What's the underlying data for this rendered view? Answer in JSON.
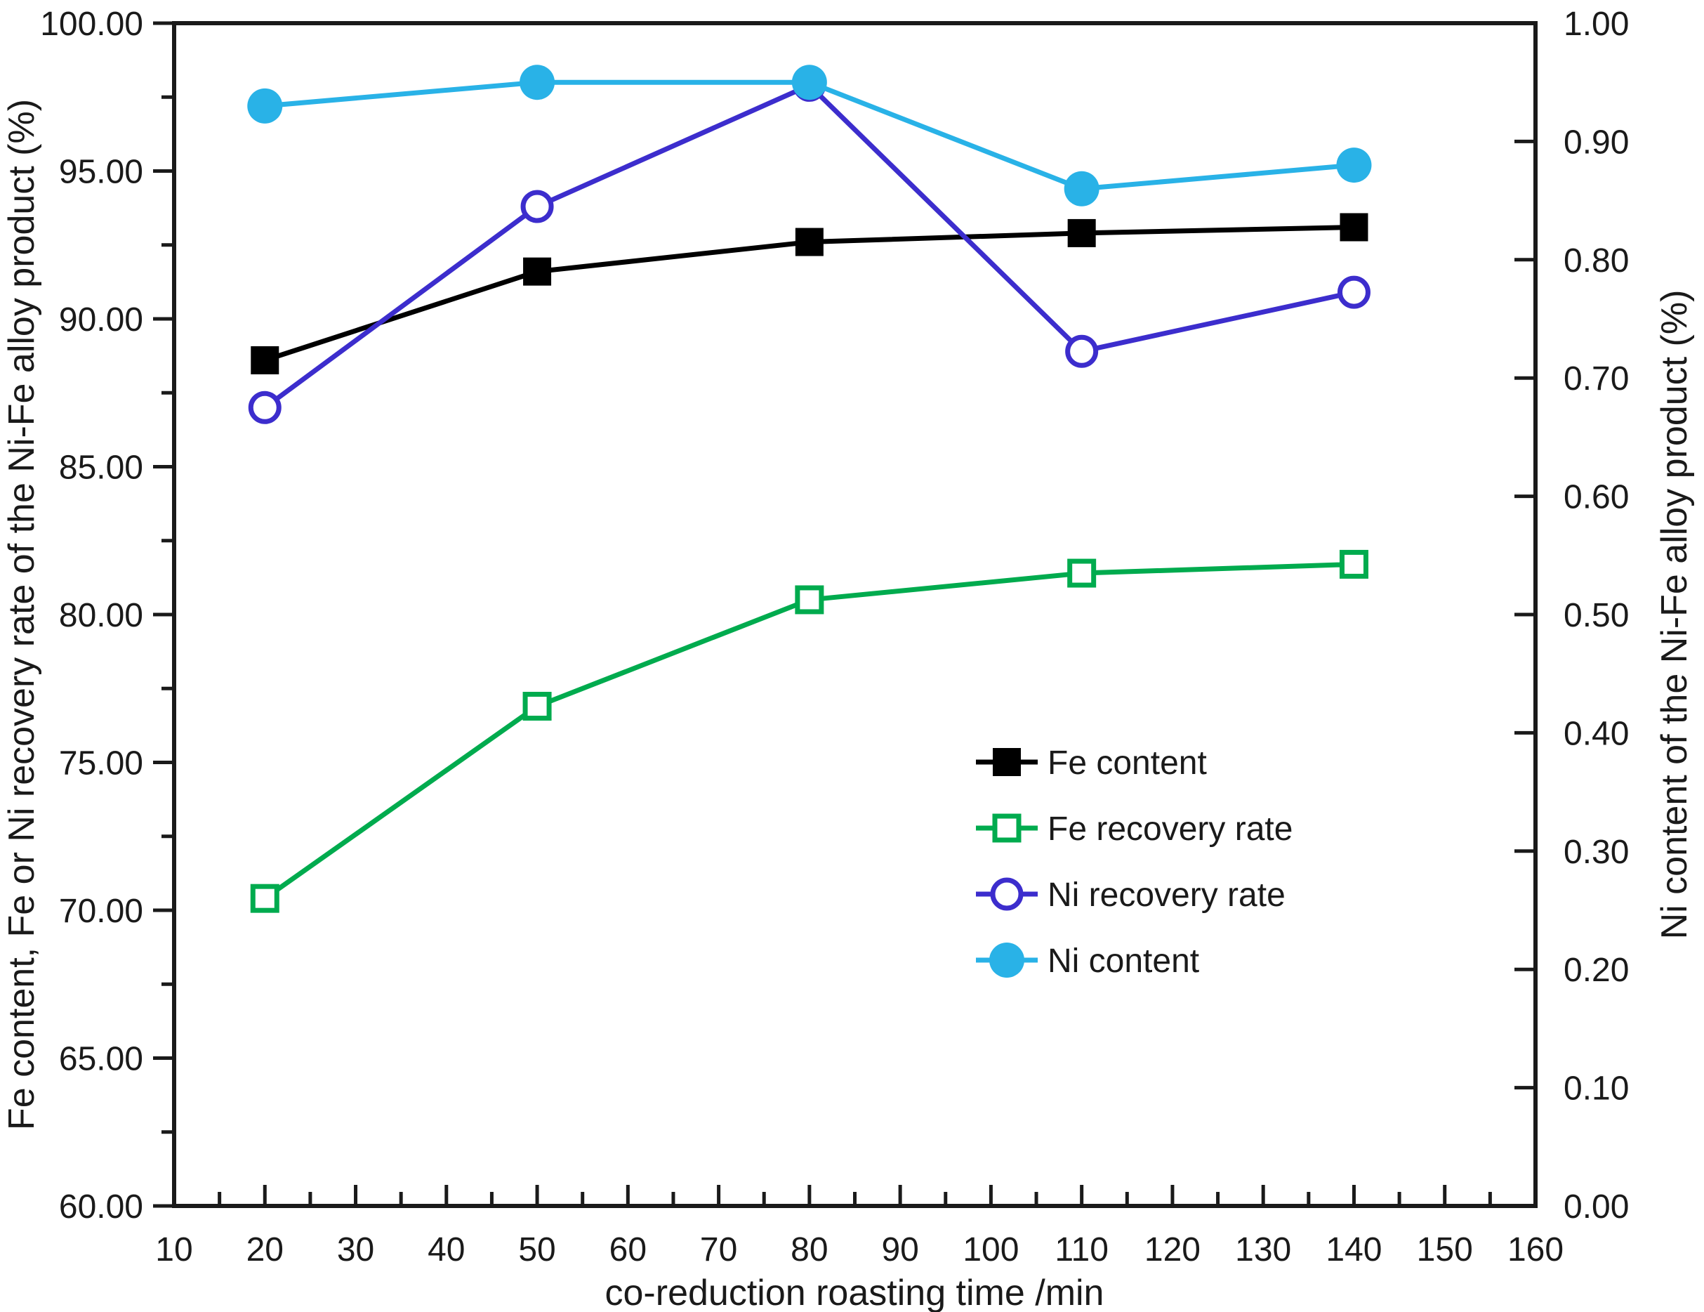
{
  "figure": {
    "background": "#ffffff"
  },
  "chart_data": {
    "type": "line",
    "x": [
      20,
      50,
      80,
      110,
      140
    ],
    "x_axis": {
      "label": "co-reduction roasting time /min",
      "min": 10,
      "max": 160,
      "major_tick_step": 10,
      "minor_tick_step": 5,
      "tick_decimals": 0
    },
    "y_axis_left": {
      "label": "Fe content, Fe or Ni recovery rate of the Ni-Fe alloy product (%)",
      "min": 60,
      "max": 100,
      "major_tick_step": 5,
      "minor_tick_step": 2.5,
      "tick_decimals": 2
    },
    "y_axis_right": {
      "label": "Ni content of the Ni-Fe alloy product (%)",
      "min": 0,
      "max": 1,
      "major_tick_step": 0.1,
      "tick_decimals": 2
    },
    "series": [
      {
        "name": "Fe content",
        "axis": "left",
        "color": "#000000",
        "marker": "filled-square",
        "values": [
          88.6,
          91.6,
          92.6,
          92.9,
          93.1
        ]
      },
      {
        "name": "Fe recovery rate",
        "axis": "left",
        "color": "#00ab4e",
        "marker": "open-square",
        "values": [
          70.4,
          76.9,
          80.5,
          81.4,
          81.7
        ]
      },
      {
        "name": "Ni recovery rate",
        "axis": "left",
        "color": "#3c2dcd",
        "marker": "open-circle",
        "values": [
          87.0,
          93.8,
          97.9,
          88.9,
          90.9
        ]
      },
      {
        "name": "Ni content",
        "axis": "right",
        "color": "#29b2e7",
        "marker": "filled-circle",
        "values": [
          0.93,
          0.95,
          0.95,
          0.86,
          0.88
        ]
      }
    ],
    "legend": {
      "position": "inside-right-middle",
      "entries": [
        "Fe content",
        "Fe recovery rate",
        "Ni recovery rate",
        "Ni content"
      ]
    },
    "grid": false
  }
}
